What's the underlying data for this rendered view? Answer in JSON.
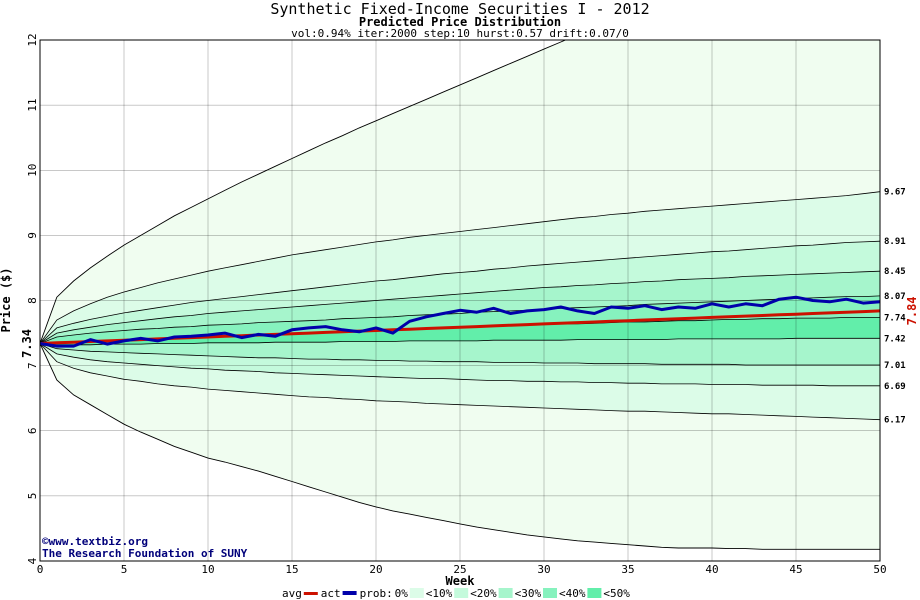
{
  "chart_data": {
    "type": "area",
    "title": "Synthetic Fixed-Income Securities I - 2012",
    "subtitle": "Predicted Price Distribution",
    "params": "vol:0.94% iter:2000 step:10 hurst:0.57 drift:0.07/0",
    "xlabel": "Week",
    "ylabel": "Price ($)",
    "xlim": [
      0,
      50
    ],
    "ylim": [
      4,
      12
    ],
    "x_ticks": [
      0,
      5,
      10,
      15,
      20,
      25,
      30,
      35,
      40,
      45,
      50
    ],
    "y_ticks": [
      4,
      5,
      6,
      7,
      8,
      9,
      10,
      11,
      12
    ],
    "grid": true,
    "start_label": "7.34",
    "end_label": "7.84",
    "right_labels": [
      "9.67",
      "8.91",
      "8.45",
      "8.07",
      "7.74",
      "7.42",
      "7.01",
      "6.69",
      "6.17"
    ],
    "band_colors": [
      "#f0fdf0",
      "#dcfce8",
      "#c4fadc",
      "#a6f5cc",
      "#86f2be",
      "#62eeaa"
    ],
    "weeks": [
      0,
      1,
      2,
      3,
      4,
      5,
      6,
      7,
      8,
      9,
      10,
      11,
      12,
      13,
      14,
      15,
      16,
      17,
      18,
      19,
      20,
      21,
      22,
      23,
      24,
      25,
      26,
      27,
      28,
      29,
      30,
      31,
      32,
      33,
      34,
      35,
      36,
      37,
      38,
      39,
      40,
      41,
      42,
      43,
      44,
      45,
      46,
      47,
      48,
      49,
      50
    ],
    "envelope_upper": [
      7.34,
      8.05,
      8.3,
      8.5,
      8.68,
      8.85,
      9.0,
      9.15,
      9.3,
      9.43,
      9.56,
      9.69,
      9.82,
      9.94,
      10.06,
      10.18,
      10.3,
      10.42,
      10.53,
      10.65,
      10.76,
      10.87,
      10.98,
      11.09,
      11.2,
      11.31,
      11.42,
      11.53,
      11.64,
      11.75,
      11.86,
      11.97,
      12.08
    ],
    "envelope_lower": [
      7.34,
      6.78,
      6.55,
      6.4,
      6.25,
      6.1,
      5.98,
      5.87,
      5.76,
      5.67,
      5.58,
      5.52,
      5.45,
      5.38,
      5.3,
      5.22,
      5.14,
      5.06,
      4.98,
      4.9,
      4.83,
      4.77,
      4.72,
      4.67,
      4.62,
      4.57,
      4.52,
      4.48,
      4.44,
      4.4,
      4.37,
      4.34,
      4.31,
      4.29,
      4.27,
      4.25,
      4.23,
      4.21,
      4.2,
      4.2,
      4.2,
      4.19,
      4.19,
      4.18,
      4.18,
      4.18,
      4.18,
      4.18,
      4.18,
      4.18,
      4.18
    ],
    "percentile_lines": [
      {
        "end": 9.67,
        "values": [
          7.34,
          7.7,
          7.84,
          7.95,
          8.05,
          8.13,
          8.2,
          8.27,
          8.33,
          8.39,
          8.45,
          8.5,
          8.55,
          8.6,
          8.65,
          8.7,
          8.74,
          8.78,
          8.82,
          8.86,
          8.9,
          8.93,
          8.97,
          9.0,
          9.03,
          9.06,
          9.09,
          9.12,
          9.15,
          9.18,
          9.21,
          9.24,
          9.27,
          9.29,
          9.32,
          9.34,
          9.37,
          9.39,
          9.41,
          9.43,
          9.45,
          9.47,
          9.49,
          9.51,
          9.53,
          9.55,
          9.57,
          9.59,
          9.61,
          9.64,
          9.67
        ]
      },
      {
        "end": 8.91,
        "values": [
          7.34,
          7.58,
          7.65,
          7.71,
          7.76,
          7.81,
          7.85,
          7.89,
          7.93,
          7.97,
          8.0,
          8.03,
          8.06,
          8.09,
          8.12,
          8.15,
          8.18,
          8.21,
          8.24,
          8.27,
          8.3,
          8.32,
          8.35,
          8.38,
          8.41,
          8.43,
          8.45,
          8.48,
          8.5,
          8.53,
          8.55,
          8.57,
          8.59,
          8.61,
          8.63,
          8.65,
          8.67,
          8.69,
          8.71,
          8.73,
          8.75,
          8.76,
          8.78,
          8.8,
          8.82,
          8.84,
          8.85,
          8.87,
          8.89,
          8.9,
          8.91
        ]
      },
      {
        "end": 8.45,
        "values": [
          7.34,
          7.5,
          7.55,
          7.59,
          7.63,
          7.66,
          7.69,
          7.72,
          7.75,
          7.77,
          7.8,
          7.82,
          7.84,
          7.86,
          7.88,
          7.9,
          7.92,
          7.94,
          7.96,
          7.98,
          8.0,
          8.02,
          8.04,
          8.06,
          8.08,
          8.1,
          8.12,
          8.14,
          8.16,
          8.18,
          8.2,
          8.21,
          8.23,
          8.24,
          8.26,
          8.27,
          8.29,
          8.3,
          8.32,
          8.33,
          8.34,
          8.35,
          8.37,
          8.38,
          8.39,
          8.4,
          8.41,
          8.42,
          8.43,
          8.44,
          8.45
        ]
      },
      {
        "end": 8.07,
        "values": [
          7.34,
          7.44,
          7.47,
          7.5,
          7.52,
          7.54,
          7.56,
          7.57,
          7.59,
          7.6,
          7.62,
          7.63,
          7.64,
          7.66,
          7.67,
          7.68,
          7.69,
          7.7,
          7.72,
          7.73,
          7.74,
          7.75,
          7.77,
          7.78,
          7.79,
          7.8,
          7.82,
          7.83,
          7.84,
          7.85,
          7.87,
          7.88,
          7.89,
          7.9,
          7.91,
          7.92,
          7.94,
          7.95,
          7.96,
          7.97,
          7.98,
          7.99,
          8.0,
          8.01,
          8.02,
          8.03,
          8.04,
          8.05,
          8.06,
          8.06,
          8.07
        ]
      },
      {
        "end": 7.74,
        "values": [
          7.34,
          7.36,
          7.37,
          7.38,
          7.39,
          7.4,
          7.41,
          7.42,
          7.43,
          7.44,
          7.45,
          7.46,
          7.47,
          7.48,
          7.49,
          7.5,
          7.51,
          7.52,
          7.53,
          7.54,
          7.55,
          7.56,
          7.56,
          7.57,
          7.58,
          7.59,
          7.6,
          7.61,
          7.61,
          7.62,
          7.63,
          7.64,
          7.64,
          7.65,
          7.66,
          7.67,
          7.67,
          7.68,
          7.69,
          7.69,
          7.7,
          7.71,
          7.71,
          7.72,
          7.72,
          7.73,
          7.73,
          7.73,
          7.74,
          7.74,
          7.74
        ]
      },
      {
        "end": 7.42,
        "values": [
          7.34,
          7.32,
          7.32,
          7.32,
          7.33,
          7.33,
          7.33,
          7.34,
          7.34,
          7.34,
          7.35,
          7.35,
          7.35,
          7.35,
          7.36,
          7.36,
          7.36,
          7.36,
          7.37,
          7.37,
          7.37,
          7.37,
          7.38,
          7.38,
          7.38,
          7.38,
          7.38,
          7.39,
          7.39,
          7.39,
          7.39,
          7.39,
          7.4,
          7.4,
          7.4,
          7.4,
          7.4,
          7.4,
          7.41,
          7.41,
          7.41,
          7.41,
          7.41,
          7.41,
          7.41,
          7.42,
          7.42,
          7.42,
          7.42,
          7.42,
          7.42
        ]
      },
      {
        "end": 7.01,
        "values": [
          7.34,
          7.26,
          7.24,
          7.22,
          7.21,
          7.2,
          7.19,
          7.18,
          7.17,
          7.16,
          7.15,
          7.14,
          7.13,
          7.12,
          7.12,
          7.11,
          7.1,
          7.1,
          7.09,
          7.09,
          7.08,
          7.08,
          7.07,
          7.07,
          7.06,
          7.06,
          7.06,
          7.05,
          7.05,
          7.05,
          7.04,
          7.04,
          7.04,
          7.03,
          7.03,
          7.03,
          7.03,
          7.02,
          7.02,
          7.02,
          7.02,
          7.02,
          7.01,
          7.01,
          7.01,
          7.01,
          7.01,
          7.01,
          7.01,
          7.01,
          7.01
        ]
      },
      {
        "end": 6.69,
        "values": [
          7.34,
          7.18,
          7.13,
          7.09,
          7.06,
          7.04,
          7.02,
          7.0,
          6.98,
          6.96,
          6.95,
          6.93,
          6.92,
          6.91,
          6.89,
          6.88,
          6.87,
          6.86,
          6.85,
          6.84,
          6.83,
          6.82,
          6.81,
          6.8,
          6.8,
          6.79,
          6.78,
          6.77,
          6.77,
          6.76,
          6.76,
          6.75,
          6.75,
          6.74,
          6.74,
          6.73,
          6.73,
          6.72,
          6.72,
          6.72,
          6.71,
          6.71,
          6.71,
          6.7,
          6.7,
          6.7,
          6.7,
          6.69,
          6.69,
          6.69,
          6.69
        ]
      },
      {
        "end": 6.17,
        "values": [
          7.34,
          7.06,
          6.96,
          6.89,
          6.84,
          6.79,
          6.76,
          6.72,
          6.69,
          6.67,
          6.64,
          6.62,
          6.6,
          6.58,
          6.56,
          6.54,
          6.52,
          6.51,
          6.49,
          6.48,
          6.46,
          6.45,
          6.44,
          6.42,
          6.41,
          6.4,
          6.39,
          6.38,
          6.37,
          6.36,
          6.35,
          6.34,
          6.33,
          6.32,
          6.31,
          6.3,
          6.3,
          6.29,
          6.28,
          6.27,
          6.26,
          6.26,
          6.25,
          6.24,
          6.23,
          6.22,
          6.21,
          6.2,
          6.19,
          6.18,
          6.17
        ]
      }
    ],
    "series": [
      {
        "name": "avg",
        "color": "#cc1100",
        "values": [
          7.34,
          7.35,
          7.36,
          7.37,
          7.38,
          7.39,
          7.4,
          7.41,
          7.42,
          7.43,
          7.44,
          7.45,
          7.46,
          7.47,
          7.48,
          7.49,
          7.5,
          7.51,
          7.52,
          7.53,
          7.54,
          7.55,
          7.56,
          7.57,
          7.58,
          7.59,
          7.6,
          7.61,
          7.62,
          7.63,
          7.64,
          7.65,
          7.66,
          7.67,
          7.68,
          7.69,
          7.7,
          7.71,
          7.72,
          7.73,
          7.74,
          7.75,
          7.76,
          7.77,
          7.78,
          7.79,
          7.8,
          7.81,
          7.82,
          7.83,
          7.84
        ]
      },
      {
        "name": "act",
        "color": "#0000aa",
        "values": [
          7.34,
          7.3,
          7.3,
          7.4,
          7.33,
          7.38,
          7.42,
          7.38,
          7.44,
          7.45,
          7.47,
          7.5,
          7.43,
          7.48,
          7.45,
          7.55,
          7.58,
          7.6,
          7.55,
          7.52,
          7.58,
          7.5,
          7.68,
          7.75,
          7.8,
          7.85,
          7.82,
          7.88,
          7.8,
          7.84,
          7.86,
          7.9,
          7.84,
          7.8,
          7.9,
          7.88,
          7.92,
          7.86,
          7.9,
          7.88,
          7.95,
          7.9,
          7.95,
          7.92,
          8.02,
          8.05,
          8.0,
          7.98,
          8.02,
          7.96,
          7.98
        ]
      }
    ],
    "legend": {
      "avg": "avg",
      "act": "act",
      "prob_prefix": "prob:",
      "items": [
        "0%",
        "<10%",
        "<20%",
        "<30%",
        "<40%",
        "<50%"
      ]
    },
    "credit": [
      "©www.textbiz.org",
      "The Research Foundation of SUNY"
    ]
  }
}
